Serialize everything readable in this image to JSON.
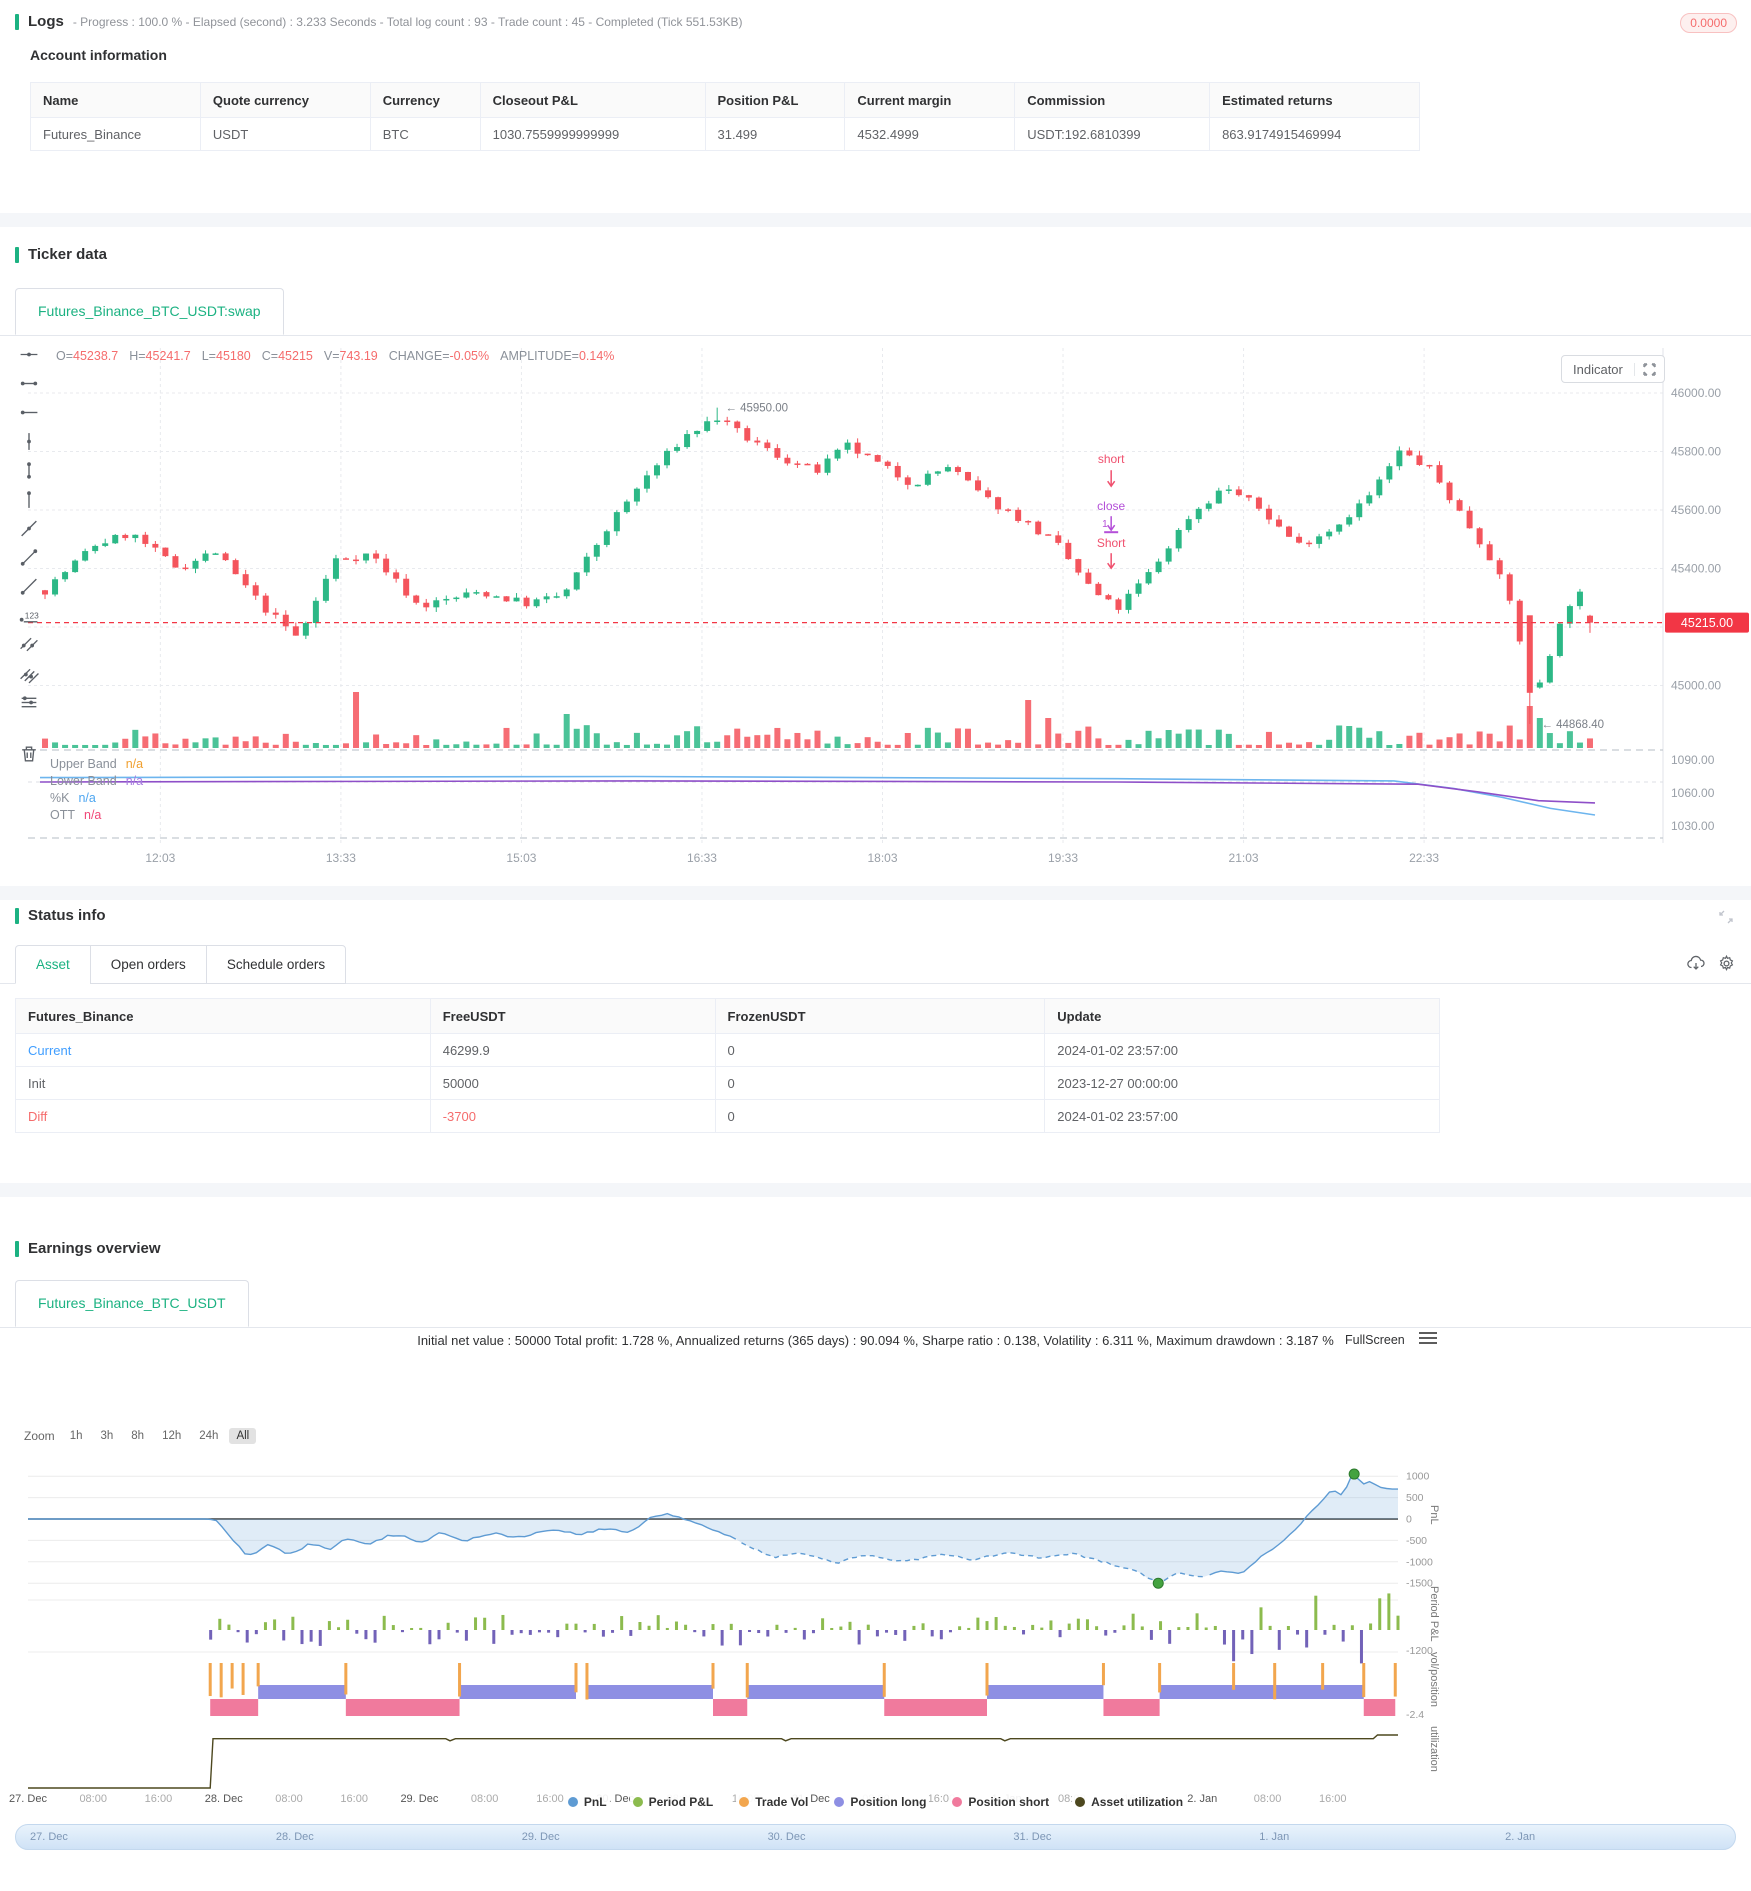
{
  "logs": {
    "title": "Logs",
    "meta": "- Progress : 100.0 % - Elapsed (second) : 3.233  Seconds - Total log count : 93 - Trade count : 45 - Completed (Tick 551.53KB)",
    "badge": "0.0000"
  },
  "account": {
    "title": "Account information",
    "headers": [
      "Name",
      "Quote currency",
      "Currency",
      "Closeout P&L",
      "Position P&L",
      "Current margin",
      "Commission",
      "Estimated returns"
    ],
    "row": [
      "Futures_Binance",
      "USDT",
      "BTC",
      "1030.7559999999999",
      "31.499",
      "4532.4999",
      "USDT:192.6810399",
      "863.9174915469994"
    ]
  },
  "ticker": {
    "section_title": "Ticker data",
    "tab": "Futures_Binance_BTC_USDT:swap",
    "indicator_button": "Indicator",
    "ohlc": [
      {
        "label": "O=",
        "value": "45238.7"
      },
      {
        "label": "H=",
        "value": "45241.7"
      },
      {
        "label": "L=",
        "value": "45180"
      },
      {
        "label": "C=",
        "value": "45215"
      },
      {
        "label": "V=",
        "value": "743.19"
      },
      {
        "label": "CHANGE=",
        "value": "-0.05%"
      },
      {
        "label": "AMPLITUDE=",
        "value": "0.14%"
      }
    ],
    "toolbar_icons": [
      "horizontal-line-icon",
      "horizontal-segment-icon",
      "horizontal-ray-icon",
      "vertical-line-icon",
      "vertical-segment-icon",
      "vertical-ray-icon",
      "trend-line-icon",
      "trend-segment-icon",
      "trend-ray-icon",
      "price-note-icon",
      "parallel-channel-icon",
      "multi-parallel-icon",
      "price-levels-icon",
      "trash-icon"
    ],
    "indicator_legend": [
      {
        "label": "Upper Band",
        "value": "n/a",
        "color": "#f0a030"
      },
      {
        "label": "Lower Band",
        "value": "n/a",
        "color": "#a87de0"
      },
      {
        "label": "%K",
        "value": "n/a",
        "color": "#4ea6f0"
      },
      {
        "label": "OTT",
        "value": "n/a",
        "color": "#f04878"
      }
    ]
  },
  "status": {
    "section_title": "Status info",
    "tabs": [
      "Asset",
      "Open orders",
      "Schedule orders"
    ],
    "active_tab": "Asset",
    "headers": [
      "Futures_Binance",
      "FreeUSDT",
      "FrozenUSDT",
      "Update"
    ],
    "rows": [
      {
        "name": "Current",
        "free": "46299.9",
        "frozen": "0",
        "update": "2024-01-02 23:57:00"
      },
      {
        "name": "Init",
        "free": "50000",
        "frozen": "0",
        "update": "2023-12-27 00:00:00"
      },
      {
        "name": "Diff",
        "free": "-3700",
        "frozen": "0",
        "update": "2024-01-02 23:57:00"
      }
    ]
  },
  "earnings": {
    "section_title": "Earnings overview",
    "tab": "Futures_Binance_BTC_USDT",
    "stats": "Initial net value : 50000 Total profit: 1.728 %, Annualized returns (365 days) : 90.094 %, Sharpe ratio : 0.138, Volatility : 6.311 %, Maximum drawdown : 3.187 %",
    "fullscreen_label": "FullScreen",
    "zoom_label": "Zoom",
    "zoom_options": [
      "1h",
      "3h",
      "8h",
      "12h",
      "24h",
      "All"
    ],
    "zoom_active": "All"
  },
  "chart_data": {
    "ticker": {
      "type": "candlestick",
      "symbol": "Futures_Binance_BTC_USDT:swap",
      "last_price": "45215.00",
      "session_high": 45950.0,
      "session_low": 44868.4,
      "peak_label": "45950.00",
      "low_label": "44868.40",
      "y_ticks": [
        "46000.00",
        "45800.00",
        "45600.00",
        "45400.00",
        "45200.00",
        "45000.00"
      ],
      "sub_ticks": [
        "1090.00",
        "1060.00",
        "1030.00"
      ],
      "x_labels": [
        {
          "t": 12.05,
          "label": "12:03"
        },
        {
          "t": 13.55,
          "label": "13:33"
        },
        {
          "t": 15.05,
          "label": "15:03"
        },
        {
          "t": 16.55,
          "label": "16:33"
        },
        {
          "t": 18.05,
          "label": "18:03"
        },
        {
          "t": 19.55,
          "label": "19:33"
        },
        {
          "t": 21.05,
          "label": "21:03"
        },
        {
          "t": 22.55,
          "label": "22:33"
        }
      ],
      "time_range": [
        11.05,
        23.97
      ],
      "price_path": [
        [
          11.05,
          45310
        ],
        [
          11.5,
          45480
        ],
        [
          11.8,
          45520
        ],
        [
          12.2,
          45400
        ],
        [
          12.5,
          45460
        ],
        [
          12.9,
          45270
        ],
        [
          13.2,
          45160
        ],
        [
          13.5,
          45430
        ],
        [
          13.8,
          45450
        ],
        [
          14.2,
          45270
        ],
        [
          14.7,
          45320
        ],
        [
          15.1,
          45280
        ],
        [
          15.4,
          45310
        ],
        [
          15.8,
          45560
        ],
        [
          16.1,
          45720
        ],
        [
          16.4,
          45850
        ],
        [
          16.67,
          45915
        ],
        [
          16.9,
          45850
        ],
        [
          17.2,
          45780
        ],
        [
          17.5,
          45730
        ],
        [
          17.75,
          45820
        ],
        [
          18.0,
          45760
        ],
        [
          18.3,
          45690
        ],
        [
          18.6,
          45750
        ],
        [
          18.9,
          45640
        ],
        [
          19.2,
          45570
        ],
        [
          19.5,
          45480
        ],
        [
          19.8,
          45320
        ],
        [
          20.0,
          45260
        ],
        [
          20.3,
          45400
        ],
        [
          20.6,
          45580
        ],
        [
          20.9,
          45680
        ],
        [
          21.2,
          45600
        ],
        [
          21.5,
          45480
        ],
        [
          21.8,
          45540
        ],
        [
          22.1,
          45650
        ],
        [
          22.35,
          45800
        ],
        [
          22.6,
          45740
        ],
        [
          22.9,
          45560
        ],
        [
          23.1,
          45440
        ],
        [
          23.3,
          45250
        ],
        [
          23.45,
          44940
        ],
        [
          23.6,
          45120
        ],
        [
          23.75,
          45280
        ],
        [
          23.88,
          45320
        ],
        [
          23.97,
          45215
        ]
      ],
      "last_candle": {
        "o": 45238.7,
        "h": 45241.7,
        "l": 45180,
        "c": 45215
      },
      "peak_t": 16.67,
      "low_t": 23.45,
      "volume_spikes": [
        {
          "t": 13.7,
          "h": 56
        },
        {
          "t": 15.4,
          "h": 34
        },
        {
          "t": 19.25,
          "h": 48
        },
        {
          "t": 19.4,
          "h": 30
        },
        {
          "t": 23.45,
          "h": 42
        },
        {
          "t": 23.55,
          "h": 30
        }
      ],
      "trade_marks": {
        "t": 19.95,
        "price_top": 45760,
        "marks": [
          {
            "text": "short",
            "color": "#f0506e"
          },
          {
            "text": "close",
            "color": "#b44fd8",
            "sub": "1"
          },
          {
            "text": "Short",
            "color": "#f0506e"
          }
        ]
      },
      "subpane": {
        "k": [
          [
            11.05,
            1074
          ],
          [
            16,
            1075
          ],
          [
            20,
            1073
          ],
          [
            22.3,
            1071
          ],
          [
            22.8,
            1064
          ],
          [
            23.2,
            1056
          ],
          [
            23.6,
            1046
          ],
          [
            23.97,
            1040
          ]
        ],
        "ott": [
          [
            11.05,
            1070
          ],
          [
            16,
            1071
          ],
          [
            20,
            1070
          ],
          [
            22.5,
            1068
          ],
          [
            23.0,
            1061
          ],
          [
            23.5,
            1053
          ],
          [
            23.97,
            1051
          ]
        ]
      },
      "colors": {
        "up": "#2cb886",
        "down": "#f4545c",
        "price_line": "#f23645"
      }
    },
    "earnings": {
      "type": "multi-pane-line",
      "pnl": {
        "axis_title": "PnL",
        "ticks": [
          1000,
          500,
          0,
          -500,
          -1000,
          -1500
        ],
        "anchors": [
          [
            0,
            0
          ],
          [
            0.132,
            0
          ],
          [
            0.138,
            -40
          ],
          [
            0.15,
            -500
          ],
          [
            0.16,
            -900
          ],
          [
            0.175,
            -650
          ],
          [
            0.19,
            -820
          ],
          [
            0.205,
            -560
          ],
          [
            0.22,
            -700
          ],
          [
            0.235,
            -420
          ],
          [
            0.25,
            -560
          ],
          [
            0.265,
            -380
          ],
          [
            0.285,
            -520
          ],
          [
            0.3,
            -340
          ],
          [
            0.32,
            -500
          ],
          [
            0.34,
            -300
          ],
          [
            0.36,
            -440
          ],
          [
            0.38,
            -240
          ],
          [
            0.4,
            -380
          ],
          [
            0.42,
            -200
          ],
          [
            0.44,
            -320
          ],
          [
            0.455,
            60
          ],
          [
            0.47,
            100
          ],
          [
            0.485,
            -80
          ],
          [
            0.5,
            -280
          ],
          [
            0.52,
            -520
          ],
          [
            0.545,
            -900
          ],
          [
            0.565,
            -780
          ],
          [
            0.59,
            -1000
          ],
          [
            0.615,
            -860
          ],
          [
            0.64,
            -980
          ],
          [
            0.665,
            -840
          ],
          [
            0.69,
            -960
          ],
          [
            0.715,
            -800
          ],
          [
            0.74,
            -920
          ],
          [
            0.765,
            -830
          ],
          [
            0.79,
            -1060
          ],
          [
            0.81,
            -1240
          ],
          [
            0.825,
            -1500
          ],
          [
            0.84,
            -1280
          ],
          [
            0.855,
            -1360
          ],
          [
            0.87,
            -1240
          ],
          [
            0.885,
            -1300
          ],
          [
            0.9,
            -860
          ],
          [
            0.915,
            -560
          ],
          [
            0.925,
            -240
          ],
          [
            0.935,
            120
          ],
          [
            0.945,
            420
          ],
          [
            0.952,
            700
          ],
          [
            0.958,
            560
          ],
          [
            0.965,
            880
          ],
          [
            0.968,
            1050
          ],
          [
            0.974,
            800
          ],
          [
            0.98,
            900
          ],
          [
            0.987,
            760
          ],
          [
            1,
            720
          ]
        ],
        "dash_range": [
          0.52,
          0.86
        ],
        "markers": [
          [
            0.825,
            -1500
          ],
          [
            0.968,
            1050
          ]
        ],
        "line_color": "#5e9bd3",
        "fill_color": "rgba(114,168,217,0.22)",
        "marker_color": "#44a340"
      },
      "period": {
        "axis_title": "Period P&L",
        "min_label": "-1200",
        "up_color": "#8cbb4e",
        "down_color": "#7262b8"
      },
      "volpos": {
        "axis_title": "vol/position",
        "min_label": "-2.4",
        "long_color": "#8e8fe3",
        "short_color": "#f07a9d",
        "vol_color": "#f2a64e",
        "long_segments": [
          [
            0.168,
            0.232
          ],
          [
            0.315,
            0.4
          ],
          [
            0.408,
            0.5
          ],
          [
            0.525,
            0.625
          ],
          [
            0.7,
            0.785
          ],
          [
            0.826,
            0.975
          ]
        ],
        "short_segments": [
          [
            0.133,
            0.168
          ],
          [
            0.232,
            0.315
          ],
          [
            0.5,
            0.525
          ],
          [
            0.625,
            0.7
          ],
          [
            0.785,
            0.826
          ],
          [
            0.975,
            0.998
          ]
        ],
        "vol_ticks": [
          0.133,
          0.141,
          0.149,
          0.157,
          0.168,
          0.232,
          0.315,
          0.4,
          0.408,
          0.5,
          0.525,
          0.625,
          0.7,
          0.785,
          0.826,
          0.88,
          0.91,
          0.945,
          0.975,
          0.998
        ]
      },
      "utilization": {
        "axis_title": "utilization",
        "line_color": "#4d481f",
        "anchors": [
          [
            0,
            0
          ],
          [
            0.133,
            0
          ],
          [
            0.135,
            0.93
          ],
          [
            0.305,
            0.93
          ],
          [
            0.308,
            0.89
          ],
          [
            0.312,
            0.93
          ],
          [
            0.55,
            0.93
          ],
          [
            0.553,
            0.89
          ],
          [
            0.557,
            0.93
          ],
          [
            0.71,
            0.93
          ],
          [
            0.713,
            0.89
          ],
          [
            0.717,
            0.93
          ],
          [
            0.982,
            0.93
          ],
          [
            0.985,
            1.0
          ],
          [
            1,
            1.0
          ]
        ]
      },
      "x_labels": [
        {
          "f": 0.0,
          "label": "27. Dec",
          "day": true
        },
        {
          "f": 0.0476,
          "label": "08:00"
        },
        {
          "f": 0.0952,
          "label": "16:00"
        },
        {
          "f": 0.1429,
          "label": "28. Dec",
          "day": true
        },
        {
          "f": 0.1905,
          "label": "08:00"
        },
        {
          "f": 0.2381,
          "label": "16:00"
        },
        {
          "f": 0.2857,
          "label": "29. Dec",
          "day": true
        },
        {
          "f": 0.3333,
          "label": "08:00"
        },
        {
          "f": 0.381,
          "label": "16:00"
        },
        {
          "f": 0.4286,
          "label": "30. Dec",
          "day": true
        },
        {
          "f": 0.4762,
          "label": "08:00"
        },
        {
          "f": 0.5238,
          "label": "16:00"
        },
        {
          "f": 0.5714,
          "label": "31. Dec",
          "day": true
        },
        {
          "f": 0.619,
          "label": "08:00"
        },
        {
          "f": 0.6667,
          "label": "16:00"
        },
        {
          "f": 0.7143,
          "label": "1. Jan",
          "day": true
        },
        {
          "f": 0.7619,
          "label": "08:00"
        },
        {
          "f": 0.8095,
          "label": "16:00"
        },
        {
          "f": 0.8571,
          "label": "2. Jan",
          "day": true
        },
        {
          "f": 0.9048,
          "label": "08:00"
        },
        {
          "f": 0.9524,
          "label": "16:00"
        }
      ],
      "legend": [
        {
          "label": "PnL",
          "color": "#5e9bd3"
        },
        {
          "label": "Period P&L",
          "color": "#8cbb4e"
        },
        {
          "label": "Trade Vol",
          "color": "#f2a64e"
        },
        {
          "label": "Position long",
          "color": "#8e8fe3"
        },
        {
          "label": "Position short",
          "color": "#f07a9d"
        },
        {
          "label": "Asset utilization",
          "color": "#4d481f"
        }
      ],
      "navigator_labels": [
        "27. Dec",
        "28. Dec",
        "29. Dec",
        "30. Dec",
        "31. Dec",
        "1. Jan",
        "2. Jan"
      ]
    }
  }
}
